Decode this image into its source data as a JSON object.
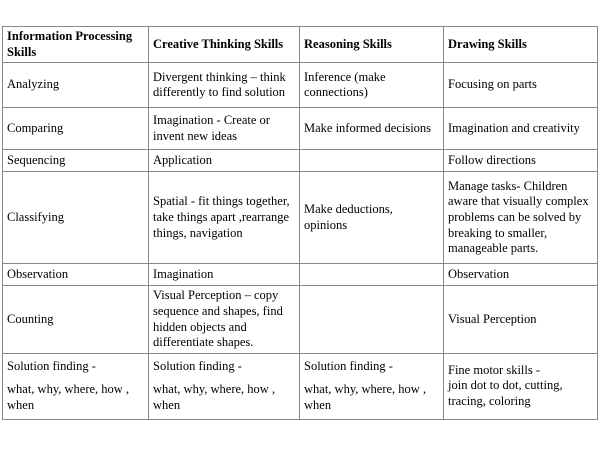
{
  "table": {
    "headers": [
      "Information Processing Skills",
      "Creative Thinking Skills",
      "Reasoning Skills",
      "Drawing Skills"
    ],
    "rows": [
      {
        "info": "Analyzing",
        "creative": "Divergent thinking – think differently to find solution",
        "reasoning": "Inference (make connections)",
        "drawing": "Focusing on parts"
      },
      {
        "info": "Comparing",
        "creative": "Imagination - Create or invent new ideas",
        "reasoning": "Make informed decisions",
        "drawing": "Imagination and creativity"
      },
      {
        "info": "Sequencing",
        "creative": "Application",
        "reasoning": "",
        "drawing": "Follow directions"
      },
      {
        "info": "Classifying",
        "creative": "Spatial - fit things together, take things apart ,rearrange things, navigation",
        "reasoning": "Make deductions, opinions",
        "drawing": "Manage tasks- Children aware that visually complex problems can be solved by breaking to smaller, manageable parts."
      },
      {
        "info": "Observation",
        "creative": "Imagination",
        "reasoning": "",
        "drawing": "Observation"
      },
      {
        "info": "Counting",
        "creative": "Visual Perception – copy sequence and shapes, find hidden objects and differentiate shapes.",
        "reasoning": "",
        "drawing": "Visual Perception"
      },
      {
        "info_line1": "Solution finding -",
        "info_line2": "what, why, where, how , when",
        "creative_line1": "Solution finding -",
        "creative_line2": "what, why, where, how , when",
        "reasoning_line1": "Solution finding -",
        "reasoning_line2": "what, why, where, how , when",
        "drawing_line1": "Fine motor skills -",
        "drawing_line2": "join dot to dot, cutting, tracing, coloring"
      }
    ]
  }
}
